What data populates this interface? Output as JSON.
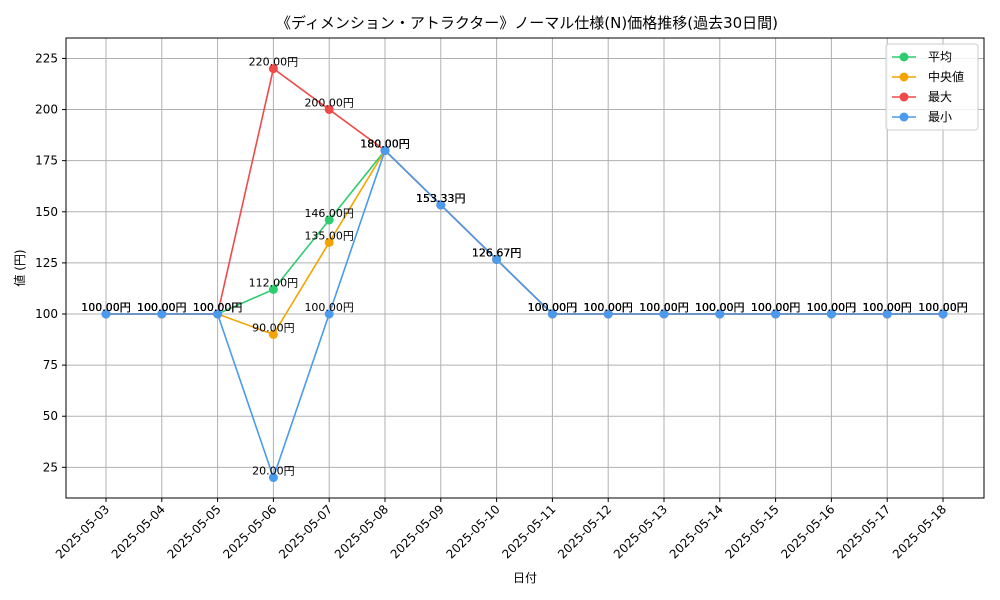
{
  "chart_data": {
    "type": "line",
    "title": "《ディメンション・アトラクター》ノーマル仕様(N)価格推移(過去30日間)",
    "xlabel": "日付",
    "ylabel": "値 (円)",
    "ylim": [
      10,
      235
    ],
    "yticks": [
      25,
      50,
      75,
      100,
      125,
      150,
      175,
      200,
      225
    ],
    "grid": true,
    "legend_position": "top-right",
    "label_suffix": "円",
    "categories": [
      "2025-05-03",
      "2025-05-04",
      "2025-05-05",
      "2025-05-06",
      "2025-05-07",
      "2025-05-08",
      "2025-05-09",
      "2025-05-10",
      "2025-05-11",
      "2025-05-12",
      "2025-05-13",
      "2025-05-14",
      "2025-05-15",
      "2025-05-16",
      "2025-05-17",
      "2025-05-18"
    ],
    "series": [
      {
        "name": "平均",
        "color": "#2ecc71",
        "values": [
          100,
          100,
          100,
          112,
          146,
          180,
          153.33,
          126.67,
          100,
          100,
          100,
          100,
          100,
          100,
          100,
          100
        ]
      },
      {
        "name": "中央値",
        "color": "#f5a300",
        "values": [
          100,
          100,
          100,
          90,
          135,
          180,
          153.33,
          126.67,
          100,
          100,
          100,
          100,
          100,
          100,
          100,
          100
        ]
      },
      {
        "name": "最大",
        "color": "#ef4a4a",
        "values": [
          100,
          100,
          100,
          220,
          200,
          180,
          153.33,
          126.67,
          100,
          100,
          100,
          100,
          100,
          100,
          100,
          100
        ]
      },
      {
        "name": "最小",
        "color": "#4a9af0",
        "values": [
          100,
          100,
          100,
          20,
          100,
          180,
          153.33,
          126.67,
          100,
          100,
          100,
          100,
          100,
          100,
          100,
          100
        ]
      }
    ]
  }
}
